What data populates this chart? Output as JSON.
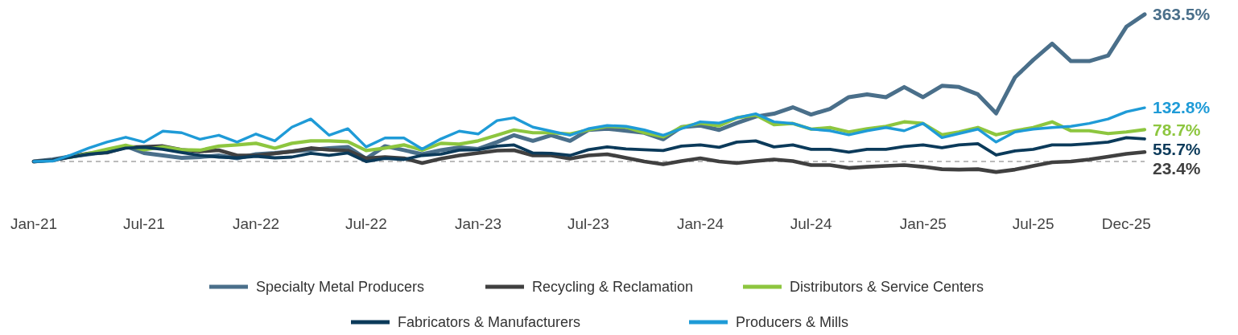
{
  "chart_data": {
    "type": "line",
    "x": [
      "2021-01-01",
      "2021-02-01",
      "2021-03-01",
      "2021-04-01",
      "2021-05-01",
      "2021-06-01",
      "2021-07-01",
      "2021-08-01",
      "2021-09-01",
      "2021-10-01",
      "2021-11-01",
      "2021-12-01",
      "2022-01-01",
      "2022-02-01",
      "2022-03-01",
      "2022-04-01",
      "2022-05-01",
      "2022-06-01",
      "2022-07-01",
      "2022-08-01",
      "2022-09-01",
      "2022-10-01",
      "2022-11-01",
      "2022-12-01",
      "2023-01-01",
      "2023-02-01",
      "2023-03-01",
      "2023-04-01",
      "2023-05-01",
      "2023-06-01",
      "2023-07-01",
      "2023-08-01",
      "2023-09-01",
      "2023-10-01",
      "2023-11-01",
      "2023-12-01",
      "2024-01-01",
      "2024-02-01",
      "2024-03-01",
      "2024-04-01",
      "2024-05-01",
      "2024-06-01",
      "2024-07-01",
      "2024-08-01",
      "2024-09-01",
      "2024-10-01",
      "2024-11-01",
      "2024-12-01",
      "2025-01-01",
      "2025-02-01",
      "2025-03-01",
      "2025-04-01",
      "2025-05-01",
      "2025-06-01",
      "2025-07-01",
      "2025-08-01",
      "2025-09-01",
      "2025-10-01",
      "2025-11-01",
      "2025-12-01",
      "2025-12-31"
    ],
    "series": [
      {
        "name": "Specialty Metal Producers",
        "color": "#4a6f8a",
        "values": [
          0,
          5,
          12,
          18,
          24,
          38,
          21,
          15,
          9,
          11,
          15,
          8,
          18,
          21,
          25,
          29,
          33,
          36,
          7,
          38,
          28,
          18,
          28,
          35,
          31,
          48,
          65,
          51,
          65,
          51,
          78,
          81,
          76,
          71,
          55,
          85,
          89,
          78,
          95,
          111,
          118,
          134,
          116,
          130,
          159,
          166,
          159,
          184,
          159,
          187,
          184,
          166,
          119,
          208,
          251,
          291,
          248,
          248,
          262,
          333,
          363.5
        ],
        "value_labels": [
          null,
          null,
          null,
          null,
          null,
          null,
          null,
          null,
          null,
          null,
          null,
          null,
          null,
          null,
          null,
          null,
          null,
          null,
          null,
          null,
          null,
          null,
          null,
          null,
          null,
          null,
          null,
          null,
          null,
          null,
          null,
          null,
          null,
          null,
          null,
          null,
          null,
          null,
          null,
          null,
          null,
          null,
          null,
          null,
          null,
          null,
          null,
          null,
          null,
          null,
          null,
          null,
          null,
          null,
          null,
          null,
          null,
          null,
          null,
          null,
          "363.5%"
        ]
      },
      {
        "name": "Recycling & Reclamation",
        "color": "#404040",
        "values": [
          0,
          3,
          12,
          20,
          22,
          35,
          36,
          38,
          29,
          25,
          28,
          15,
          15,
          20,
          25,
          33,
          29,
          27,
          8,
          11,
          8,
          -4,
          7,
          15,
          21,
          27,
          28,
          15,
          15,
          7,
          15,
          18,
          9,
          0,
          -7,
          1,
          8,
          0,
          -4,
          1,
          5,
          1,
          -9,
          -9,
          -16,
          -13,
          -11,
          -9,
          -13,
          -19,
          -20,
          -19,
          -26,
          -20,
          -11,
          -2,
          0,
          5,
          12,
          19,
          23.4
        ],
        "value_labels": [
          null,
          null,
          null,
          null,
          null,
          null,
          null,
          null,
          null,
          null,
          null,
          null,
          null,
          null,
          null,
          null,
          null,
          null,
          null,
          null,
          null,
          null,
          null,
          null,
          null,
          null,
          null,
          null,
          null,
          null,
          null,
          null,
          null,
          null,
          null,
          null,
          null,
          null,
          null,
          null,
          null,
          null,
          null,
          null,
          null,
          null,
          null,
          null,
          null,
          null,
          null,
          null,
          null,
          null,
          null,
          null,
          null,
          null,
          null,
          null,
          "23.4%"
        ]
      },
      {
        "name": "Distributors & Service Centers",
        "color": "#8dc63f",
        "values": [
          null,
          null,
          10,
          20,
          30,
          40,
          29,
          36,
          29,
          28,
          38,
          41,
          45,
          33,
          45,
          51,
          51,
          49,
          27,
          33,
          41,
          28,
          45,
          43,
          51,
          65,
          78,
          71,
          71,
          68,
          78,
          87,
          85,
          71,
          61,
          85,
          95,
          88,
          108,
          115,
          91,
          94,
          80,
          84,
          73,
          81,
          87,
          98,
          94,
          66,
          73,
          84,
          66,
          76,
          84,
          98,
          76,
          76,
          69,
          73,
          78.7
        ],
        "value_labels": [
          null,
          null,
          null,
          null,
          null,
          null,
          null,
          null,
          null,
          null,
          null,
          null,
          null,
          null,
          null,
          null,
          null,
          null,
          null,
          null,
          null,
          null,
          null,
          null,
          null,
          null,
          null,
          null,
          null,
          null,
          null,
          null,
          null,
          null,
          null,
          null,
          null,
          null,
          null,
          null,
          null,
          null,
          null,
          null,
          null,
          null,
          null,
          null,
          null,
          null,
          null,
          null,
          null,
          null,
          null,
          null,
          null,
          null,
          null,
          null,
          "78.7%"
        ]
      },
      {
        "name": "Fabricators & Manufacturers",
        "color": "#0b3a5a",
        "values": [
          0,
          3,
          10,
          18,
          22,
          33,
          35,
          30,
          22,
          15,
          11,
          9,
          13,
          9,
          11,
          20,
          15,
          21,
          0,
          8,
          5,
          15,
          18,
          28,
          29,
          38,
          41,
          21,
          20,
          15,
          29,
          36,
          31,
          29,
          27,
          38,
          41,
          35,
          48,
          51,
          36,
          41,
          30,
          30,
          23,
          30,
          30,
          37,
          41,
          34,
          41,
          44,
          16,
          26,
          30,
          41,
          41,
          44,
          48,
          59,
          55.7
        ],
        "value_labels": [
          null,
          null,
          null,
          null,
          null,
          null,
          null,
          null,
          null,
          null,
          null,
          null,
          null,
          null,
          null,
          null,
          null,
          null,
          null,
          null,
          null,
          null,
          null,
          null,
          null,
          null,
          null,
          null,
          null,
          null,
          null,
          null,
          null,
          null,
          null,
          null,
          null,
          null,
          null,
          null,
          null,
          null,
          null,
          null,
          null,
          null,
          null,
          null,
          null,
          null,
          null,
          null,
          null,
          null,
          null,
          null,
          null,
          null,
          null,
          null,
          "55.7%"
        ]
      },
      {
        "name": "Producers & Mills",
        "color": "#1f9bd7",
        "values": [
          0,
          1,
          15,
          33,
          48,
          60,
          48,
          75,
          71,
          55,
          65,
          48,
          68,
          51,
          85,
          105,
          65,
          81,
          36,
          58,
          58,
          31,
          56,
          75,
          68,
          101,
          108,
          85,
          75,
          65,
          81,
          89,
          87,
          78,
          65,
          81,
          98,
          95,
          108,
          118,
          98,
          94,
          80,
          76,
          66,
          76,
          84,
          76,
          94,
          59,
          69,
          80,
          48,
          73,
          80,
          84,
          87,
          94,
          105,
          123,
          132.8
        ],
        "value_labels": [
          null,
          null,
          null,
          null,
          null,
          null,
          null,
          null,
          null,
          null,
          null,
          null,
          null,
          null,
          null,
          null,
          null,
          null,
          null,
          null,
          null,
          null,
          null,
          null,
          null,
          null,
          null,
          null,
          null,
          null,
          null,
          null,
          null,
          null,
          null,
          null,
          null,
          null,
          null,
          null,
          null,
          null,
          null,
          null,
          null,
          null,
          null,
          null,
          null,
          null,
          null,
          null,
          null,
          null,
          null,
          null,
          null,
          null,
          null,
          null,
          "132.8%"
        ]
      }
    ],
    "xlim": [
      "2021-01-01",
      "2025-12-31"
    ],
    "xticks": [
      {
        "value": "2021-01-01",
        "label": "Jan-21"
      },
      {
        "value": "2021-07-01",
        "label": "Jul-21"
      },
      {
        "value": "2022-01-01",
        "label": "Jan-22"
      },
      {
        "value": "2022-07-01",
        "label": "Jul-22"
      },
      {
        "value": "2023-01-01",
        "label": "Jan-23"
      },
      {
        "value": "2023-07-01",
        "label": "Jul-23"
      },
      {
        "value": "2024-01-01",
        "label": "Jan-24"
      },
      {
        "value": "2024-07-01",
        "label": "Jul-24"
      },
      {
        "value": "2025-01-01",
        "label": "Jan-25"
      },
      {
        "value": "2025-07-01",
        "label": "Jul-25"
      },
      {
        "value": "2025-12-01",
        "label": "Dec-25"
      }
    ],
    "tick_labels": "x",
    "ref_lines": [
      {
        "axis": "y",
        "value": 0,
        "color": "#bbbbbb",
        "line_style": "dashed"
      }
    ],
    "legend": "bottom",
    "line_style": "solid"
  }
}
